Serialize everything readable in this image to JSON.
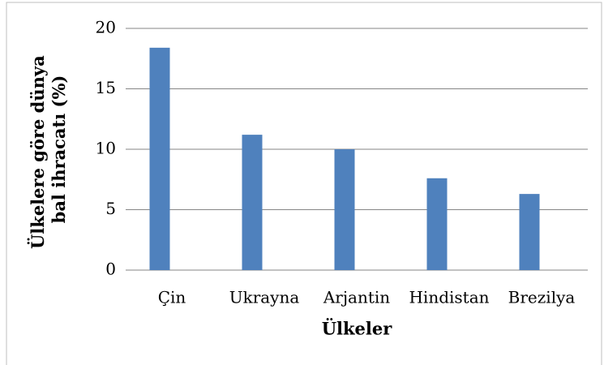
{
  "chart_data": {
    "type": "bar",
    "x_label": "Ülkeler",
    "y_label": [
      "Ülkelere göre dünya",
      "bal ihracatı (%)"
    ],
    "categories": [
      "Çin",
      "Ukrayna",
      "Arjantin",
      "Hindistan",
      "Brezilya"
    ],
    "values": [
      18.4,
      11.2,
      10.0,
      7.6,
      6.3
    ],
    "color": "#4f81bd",
    "ylim": [
      0,
      20
    ],
    "yticks": [
      0,
      5,
      10,
      15,
      20
    ],
    "grid": true
  }
}
